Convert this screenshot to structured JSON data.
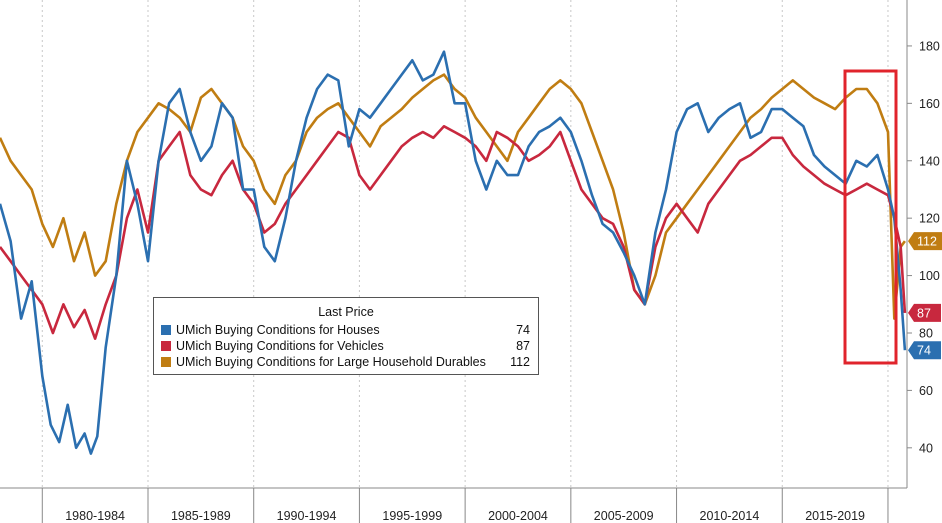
{
  "chart_data": {
    "type": "line",
    "ylim": [
      26,
      196
    ],
    "y_ticks": [
      40,
      60,
      80,
      100,
      120,
      140,
      160,
      180
    ],
    "x_range": [
      1978,
      2020.9
    ],
    "x_period_labels": [
      "1980-1984",
      "1985-1989",
      "1990-1994",
      "1995-1999",
      "2000-2004",
      "2005-2009",
      "2010-2014",
      "2015-2019"
    ],
    "grid": "vertical dashed",
    "legend": {
      "title": "Last Price",
      "placement": "lower-left"
    },
    "series": [
      {
        "name": "UMich Buying Conditions for Houses",
        "color": "#2b6fb0",
        "last_value": 74,
        "last_label": "74",
        "x": [
          1978.0,
          1978.5,
          1979.0,
          1979.5,
          1980.0,
          1980.4,
          1980.8,
          1981.2,
          1981.6,
          1982.0,
          1982.3,
          1982.6,
          1983.0,
          1983.5,
          1984.0,
          1984.5,
          1985.0,
          1985.5,
          1986.0,
          1986.5,
          1987.0,
          1987.5,
          1988.0,
          1988.5,
          1989.0,
          1989.5,
          1990.0,
          1990.5,
          1991.0,
          1991.5,
          1992.0,
          1992.5,
          1993.0,
          1993.5,
          1994.0,
          1994.5,
          1995.0,
          1995.5,
          1996.0,
          1996.5,
          1997.0,
          1997.5,
          1998.0,
          1998.5,
          1999.0,
          1999.5,
          2000.0,
          2000.5,
          2001.0,
          2001.5,
          2002.0,
          2002.5,
          2003.0,
          2003.5,
          2004.0,
          2004.5,
          2005.0,
          2005.5,
          2006.0,
          2006.5,
          2007.0,
          2007.5,
          2008.0,
          2008.5,
          2009.0,
          2009.5,
          2010.0,
          2010.5,
          2011.0,
          2011.5,
          2012.0,
          2012.5,
          2013.0,
          2013.5,
          2014.0,
          2014.5,
          2015.0,
          2015.5,
          2016.0,
          2016.5,
          2017.0,
          2017.5,
          2018.0,
          2018.5,
          2019.0,
          2019.5,
          2020.0,
          2020.3,
          2020.6,
          2020.8
        ],
        "values": [
          125,
          112,
          85,
          98,
          65,
          48,
          42,
          55,
          40,
          45,
          38,
          44,
          75,
          100,
          140,
          125,
          105,
          140,
          160,
          165,
          150,
          140,
          145,
          160,
          155,
          130,
          130,
          110,
          105,
          120,
          140,
          155,
          165,
          170,
          168,
          145,
          158,
          155,
          160,
          165,
          170,
          175,
          168,
          170,
          178,
          160,
          160,
          140,
          130,
          140,
          135,
          135,
          145,
          150,
          152,
          155,
          150,
          140,
          128,
          118,
          115,
          108,
          100,
          90,
          115,
          130,
          150,
          158,
          160,
          150,
          155,
          158,
          160,
          148,
          150,
          158,
          158,
          155,
          152,
          142,
          138,
          135,
          132,
          140,
          138,
          142,
          130,
          120,
          95,
          74
        ]
      },
      {
        "name": "UMich Buying Conditions for Vehicles",
        "color": "#c8283e",
        "last_value": 87,
        "last_label": "87",
        "x": [
          1978.0,
          1978.5,
          1979.0,
          1979.5,
          1980.0,
          1980.5,
          1981.0,
          1981.5,
          1982.0,
          1982.5,
          1983.0,
          1983.5,
          1984.0,
          1984.5,
          1985.0,
          1985.5,
          1986.0,
          1986.5,
          1987.0,
          1987.5,
          1988.0,
          1988.5,
          1989.0,
          1989.5,
          1990.0,
          1990.5,
          1991.0,
          1991.5,
          1992.0,
          1992.5,
          1993.0,
          1993.5,
          1994.0,
          1994.5,
          1995.0,
          1995.5,
          1996.0,
          1996.5,
          1997.0,
          1997.5,
          1998.0,
          1998.5,
          1999.0,
          1999.5,
          2000.0,
          2000.5,
          2001.0,
          2001.5,
          2002.0,
          2002.5,
          2003.0,
          2003.5,
          2004.0,
          2004.5,
          2005.0,
          2005.5,
          2006.0,
          2006.5,
          2007.0,
          2007.5,
          2008.0,
          2008.5,
          2009.0,
          2009.5,
          2010.0,
          2010.5,
          2011.0,
          2011.5,
          2012.0,
          2012.5,
          2013.0,
          2013.5,
          2014.0,
          2014.5,
          2015.0,
          2015.5,
          2016.0,
          2016.5,
          2017.0,
          2017.5,
          2018.0,
          2018.5,
          2019.0,
          2019.5,
          2020.0,
          2020.3,
          2020.6,
          2020.8
        ],
        "values": [
          110,
          105,
          100,
          95,
          90,
          80,
          90,
          82,
          88,
          78,
          90,
          100,
          120,
          130,
          115,
          140,
          145,
          150,
          135,
          130,
          128,
          135,
          140,
          130,
          125,
          115,
          118,
          125,
          130,
          135,
          140,
          145,
          150,
          148,
          135,
          130,
          135,
          140,
          145,
          148,
          150,
          148,
          152,
          150,
          148,
          145,
          140,
          150,
          148,
          145,
          140,
          142,
          145,
          150,
          140,
          130,
          125,
          120,
          118,
          110,
          95,
          90,
          110,
          120,
          125,
          120,
          115,
          125,
          130,
          135,
          140,
          142,
          145,
          148,
          148,
          142,
          138,
          135,
          132,
          130,
          128,
          130,
          132,
          130,
          128,
          120,
          110,
          87
        ]
      },
      {
        "name": "UMich Buying Conditions for Large Household Durables",
        "color": "#c07d12",
        "last_value": 112,
        "last_label": "112",
        "x": [
          1978.0,
          1978.5,
          1979.0,
          1979.5,
          1980.0,
          1980.5,
          1981.0,
          1981.5,
          1982.0,
          1982.5,
          1983.0,
          1983.5,
          1984.0,
          1984.5,
          1985.0,
          1985.5,
          1986.0,
          1986.5,
          1987.0,
          1987.5,
          1988.0,
          1988.5,
          1989.0,
          1989.5,
          1990.0,
          1990.5,
          1991.0,
          1991.5,
          1992.0,
          1992.5,
          1993.0,
          1993.5,
          1994.0,
          1994.5,
          1995.0,
          1995.5,
          1996.0,
          1996.5,
          1997.0,
          1997.5,
          1998.0,
          1998.5,
          1999.0,
          1999.5,
          2000.0,
          2000.5,
          2001.0,
          2001.5,
          2002.0,
          2002.5,
          2003.0,
          2003.5,
          2004.0,
          2004.5,
          2005.0,
          2005.5,
          2006.0,
          2006.5,
          2007.0,
          2007.5,
          2008.0,
          2008.5,
          2009.0,
          2009.5,
          2010.0,
          2010.5,
          2011.0,
          2011.5,
          2012.0,
          2012.5,
          2013.0,
          2013.5,
          2014.0,
          2014.5,
          2015.0,
          2015.5,
          2016.0,
          2016.5,
          2017.0,
          2017.5,
          2018.0,
          2018.5,
          2019.0,
          2019.5,
          2020.0,
          2020.3,
          2020.6,
          2020.8
        ],
        "values": [
          148,
          140,
          135,
          130,
          118,
          110,
          120,
          105,
          115,
          100,
          105,
          125,
          140,
          150,
          155,
          160,
          158,
          155,
          150,
          162,
          165,
          160,
          155,
          145,
          140,
          130,
          125,
          135,
          140,
          150,
          155,
          158,
          160,
          155,
          150,
          145,
          152,
          155,
          158,
          162,
          165,
          168,
          170,
          165,
          162,
          155,
          150,
          145,
          140,
          150,
          155,
          160,
          165,
          168,
          165,
          160,
          150,
          140,
          130,
          115,
          95,
          90,
          100,
          115,
          120,
          125,
          130,
          135,
          140,
          145,
          150,
          155,
          158,
          162,
          165,
          168,
          165,
          162,
          160,
          158,
          162,
          165,
          165,
          160,
          150,
          85,
          110,
          112
        ]
      }
    ]
  }
}
